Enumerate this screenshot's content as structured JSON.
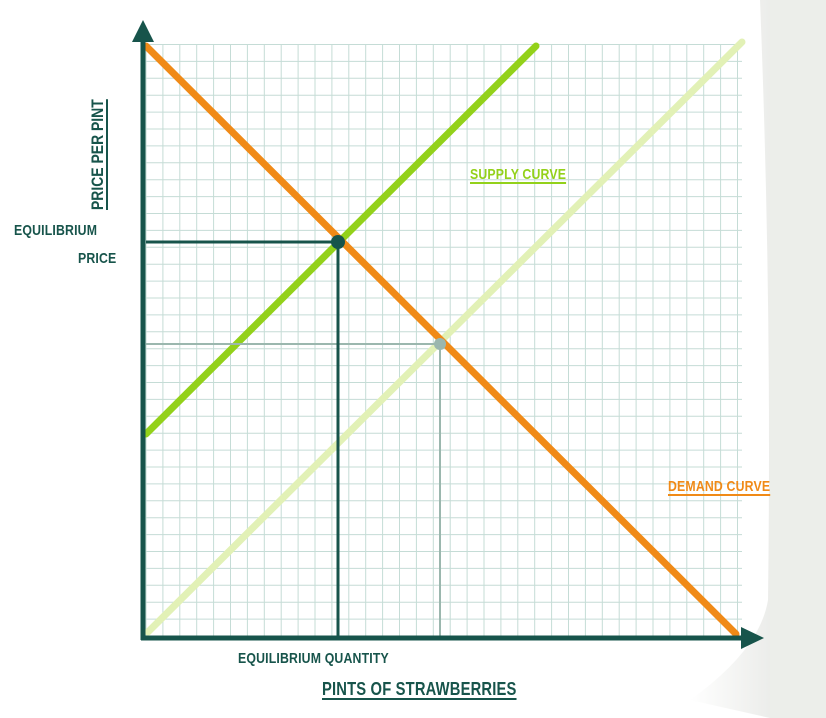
{
  "colors": {
    "axis": "#17544b",
    "grid": "#c5dcd6",
    "supply": "#93d11a",
    "supply_shifted": "#e2f1b6",
    "demand": "#f08a17",
    "equilibrium": "#17544b",
    "equilibrium_shifted": "#9bb7ae",
    "paper": "#ffffff",
    "background": "#f3f4f2"
  },
  "labels": {
    "y_axis_title": "PRICE PER PINT",
    "x_axis_title": "PINTS OF STRAWBERRIES",
    "equilibrium_price_line1": "EQUILIBRIUM",
    "equilibrium_price_line2": "PRICE",
    "equilibrium_quantity": "EQUILIBRIUM QUANTITY",
    "supply_curve": "SUPPLY CURVE",
    "demand_curve": "DEMAND CURVE"
  },
  "icons": {
    "y_axis_arrow": "arrow-up-icon",
    "x_axis_arrow": "arrow-right-icon"
  }
}
